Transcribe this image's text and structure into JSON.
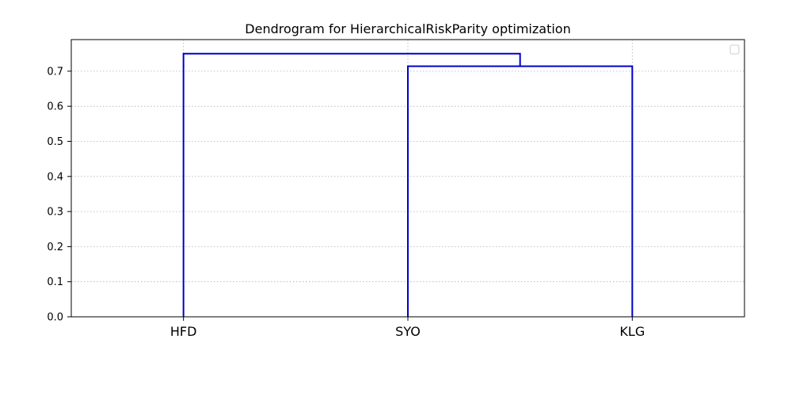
{
  "chart_data": {
    "type": "dendrogram",
    "title": "Dendrogram for HierarchicalRiskParity optimization",
    "xlabel": "",
    "ylabel": "",
    "leaves": [
      "HFD",
      "SYO",
      "KLG"
    ],
    "yticks": [
      "0.0",
      "0.1",
      "0.2",
      "0.3",
      "0.4",
      "0.5",
      "0.6",
      "0.7"
    ],
    "ylim": [
      0,
      0.79
    ],
    "links": [
      {
        "left": "SYO",
        "right": "KLG",
        "height": 0.714
      },
      {
        "left": "HFD",
        "right": "SYO+KLG",
        "height": 0.75
      }
    ],
    "link_color": "#0000cc",
    "grid": true,
    "legend": "top-right (empty)"
  }
}
